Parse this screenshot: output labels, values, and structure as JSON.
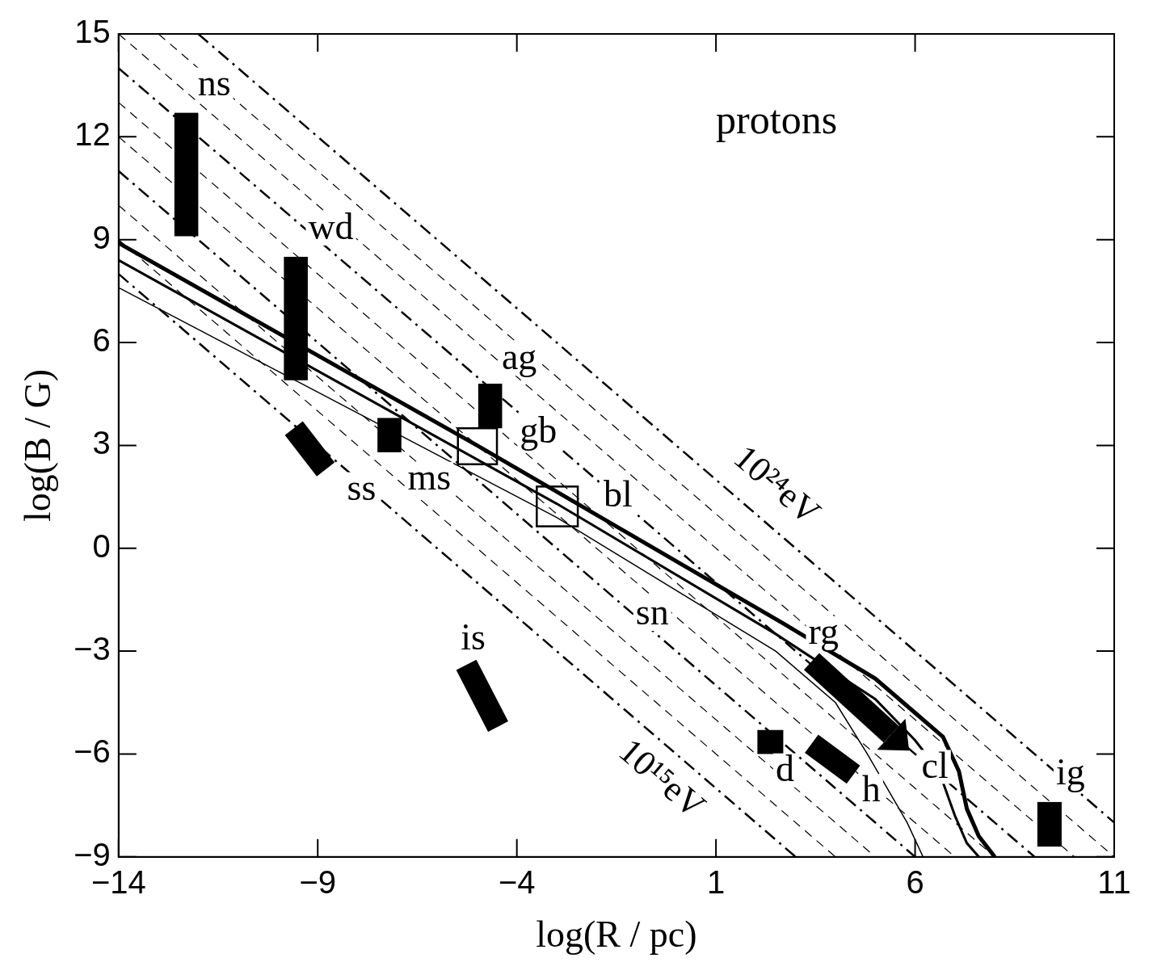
{
  "chart_data": {
    "type": "line",
    "x_label": "log(R / pc)",
    "y_label": "log(B / G)",
    "xlim": [
      -14,
      11
    ],
    "xticks": [
      {
        "value": -14,
        "label": "−14"
      },
      {
        "value": -9,
        "label": "−9"
      },
      {
        "value": -4,
        "label": "−4"
      },
      1,
      6,
      11
    ],
    "ylim": [
      -9,
      15
    ],
    "yticks": [
      {
        "value": -9,
        "label": "−9"
      },
      {
        "value": -6,
        "label": "−6"
      },
      {
        "value": -3,
        "label": "−3"
      },
      0,
      3,
      6,
      9,
      12,
      15
    ],
    "grid": false,
    "color": "#000000",
    "series": [
      {
        "line_style": "dashdot",
        "x": [
          -14,
          3
        ],
        "values": [
          8,
          -9
        ]
      },
      {
        "line_style": "dashed",
        "x": [
          -14,
          4
        ],
        "values": [
          9,
          -9
        ]
      },
      {
        "line_style": "dashed",
        "x": [
          -14,
          5
        ],
        "values": [
          10,
          -9
        ]
      },
      {
        "line_style": "dashdot",
        "x": [
          -14,
          6
        ],
        "values": [
          11,
          -9
        ]
      },
      {
        "line_style": "dashed",
        "x": [
          -14,
          7
        ],
        "values": [
          12,
          -9
        ]
      },
      {
        "line_style": "dashed",
        "x": [
          -14,
          8
        ],
        "values": [
          13,
          -9
        ]
      },
      {
        "line_style": "dashdot",
        "x": [
          -14,
          9
        ],
        "values": [
          14,
          -9
        ]
      },
      {
        "line_style": "dashed",
        "x": [
          -14,
          10
        ],
        "values": [
          15,
          -9
        ]
      },
      {
        "line_style": "dashed",
        "x": [
          -13,
          11
        ],
        "values": [
          15,
          -9
        ]
      },
      {
        "line_style": "dashdot",
        "x": [
          -12,
          11
        ],
        "values": [
          15,
          -8
        ]
      },
      {
        "line_style": "solid",
        "x": [
          -14,
          -5,
          2.7,
          5,
          6,
          6.7,
          7.1,
          7.3,
          7.6,
          8
        ],
        "values": [
          8.9,
          3,
          -2.2,
          -3.8,
          -4.8,
          -5.5,
          -6.5,
          -7.6,
          -8.4,
          -9
        ]
      },
      {
        "line_style": "solid",
        "x": [
          -14,
          -3,
          2.5,
          5,
          6,
          6.6,
          7,
          7.3,
          7.6
        ],
        "values": [
          8.4,
          1.3,
          -2.5,
          -4.4,
          -5.6,
          -6.5,
          -7.8,
          -8.6,
          -9
        ]
      },
      {
        "line_style": "solid",
        "x": [
          -14,
          -3,
          2.5,
          4,
          4.8,
          5.3,
          5.8,
          6.2
        ],
        "values": [
          7.6,
          0.9,
          -3,
          -4.5,
          -6,
          -7,
          -8,
          -9
        ]
      }
    ],
    "regions": [
      {
        "label": "ns",
        "shape": "box",
        "filled": true,
        "x": [
          -12.6,
          -12.0
        ],
        "y": [
          9.1,
          12.7
        ],
        "label_at": [
          -11.6,
          13.5
        ]
      },
      {
        "label": "wd",
        "shape": "box",
        "filled": true,
        "x": [
          -9.85,
          -9.25
        ],
        "y": [
          4.9,
          8.5
        ],
        "label_at": [
          -8.67,
          9.3
        ]
      },
      {
        "label": "ag",
        "shape": "box",
        "filled": true,
        "x": [
          -4.97,
          -4.37
        ],
        "y": [
          3.5,
          4.8
        ],
        "label_at": [
          -3.94,
          5.5
        ]
      },
      {
        "label": "gb",
        "shape": "box",
        "filled": false,
        "x": [
          -5.48,
          -4.5
        ],
        "y": [
          2.45,
          3.5
        ],
        "label_at": [
          -3.46,
          3.36
        ]
      },
      {
        "label": "ms",
        "shape": "box",
        "filled": true,
        "x": [
          -7.5,
          -6.9
        ],
        "y": [
          2.8,
          3.8
        ],
        "label_at": [
          -6.2,
          2.0
        ]
      },
      {
        "label": "ss",
        "shape": "band",
        "x": [
          -9.6,
          -8.8
        ],
        "y": [
          3.5,
          2.3
        ],
        "label_at": [
          -7.9,
          1.7
        ]
      },
      {
        "label": "bl",
        "shape": "box",
        "filled": false,
        "x": [
          -3.5,
          -2.47
        ],
        "y": [
          0.64,
          1.8
        ],
        "label_at": [
          -1.46,
          1.5
        ]
      },
      {
        "label": "is",
        "shape": "band",
        "x": [
          -5.27,
          -4.47
        ],
        "y": [
          -3.4,
          -5.2
        ],
        "label_at": [
          -5.1,
          -2.66
        ]
      },
      {
        "label": "sn",
        "label_at": [
          -0.6,
          -1.94
        ]
      },
      {
        "label": "rg",
        "label_at": [
          3.7,
          -2.5
        ]
      },
      {
        "label": "d",
        "shape": "box",
        "filled": true,
        "x": [
          2.04,
          2.69
        ],
        "y": [
          -6.0,
          -5.3
        ],
        "label_at": [
          2.73,
          -6.5
        ]
      },
      {
        "label": "h",
        "shape": "band",
        "x": [
          3.4,
          4.45
        ],
        "y": [
          -5.7,
          -6.6
        ],
        "label_at": [
          4.9,
          -7.1
        ]
      },
      {
        "label": "cl",
        "shape": "arrow",
        "x": [
          3.4,
          5.85
        ],
        "y": [
          -3.3,
          -5.9
        ],
        "label_at": [
          6.5,
          -6.4
        ]
      },
      {
        "label": "ig",
        "shape": "box",
        "filled": true,
        "x": [
          9.07,
          9.68
        ],
        "y": [
          -8.7,
          -7.4
        ],
        "label_at": [
          9.9,
          -6.6
        ]
      }
    ],
    "annotations": [
      {
        "text": "protons",
        "x": 1,
        "y": 12.4
      }
    ],
    "line_labels": [
      {
        "text": "10²⁴eV",
        "x": 2.5,
        "y": 1.8
      },
      {
        "text": "10¹⁵eV",
        "x": -0.39,
        "y": -6.76
      }
    ]
  }
}
